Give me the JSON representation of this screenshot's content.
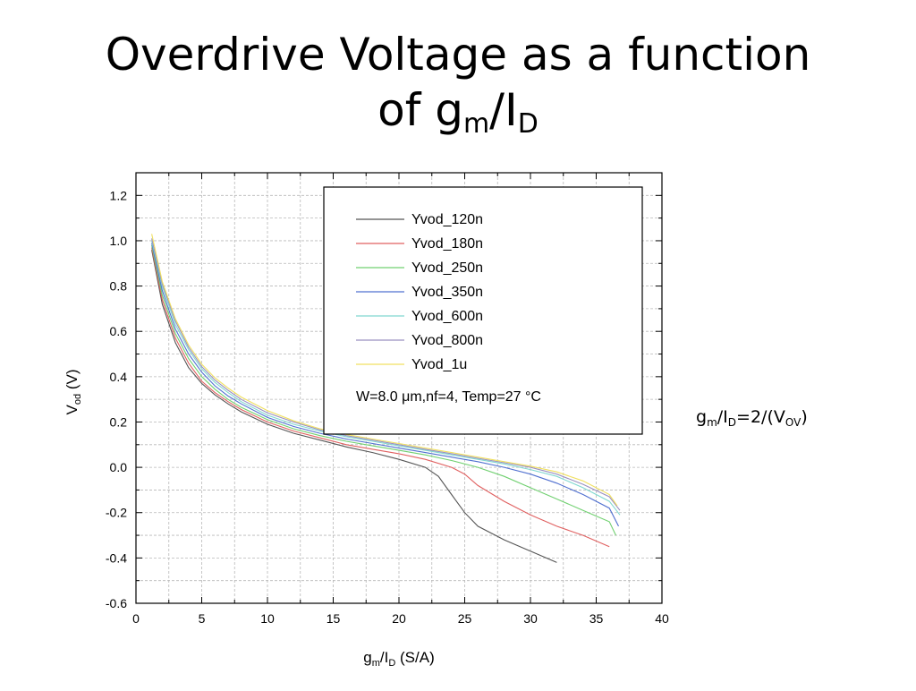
{
  "slide": {
    "title_line1": "Overdrive Voltage as a function",
    "title_line2_main": "of g",
    "title_line2_sub1": "m",
    "title_line2_mid": "/I",
    "title_line2_sub2": "D"
  },
  "side_note": {
    "g": "g",
    "m": "m",
    "slash_i": "/I",
    "d": "D",
    "eq": "=2/(V",
    "ov": "OV",
    "close": ")"
  },
  "chart_data": {
    "type": "line",
    "title": "",
    "xlabel": {
      "main": "g",
      "sub1": "m",
      "mid": "/I",
      "sub2": "D",
      "tail": " (S/A)"
    },
    "ylabel": {
      "main": "V",
      "sub": "od",
      "tail": " (V)"
    },
    "xlim": [
      0,
      40
    ],
    "ylim": [
      -0.6,
      1.3
    ],
    "xticks": [
      "0",
      "5",
      "10",
      "15",
      "20",
      "25",
      "30",
      "35",
      "40"
    ],
    "yticks": [
      "-0.6",
      "-0.4",
      "-0.2",
      "0.0",
      "0.2",
      "0.4",
      "0.6",
      "0.8",
      "1.0",
      "1.2"
    ],
    "grid": true,
    "legend_position": "top-right",
    "annotation": "W=8.0 μm,nf=4, Temp=27 °C",
    "series": [
      {
        "name": "Yvod_120n",
        "color": "#555555",
        "points": [
          [
            1.2,
            0.96
          ],
          [
            2,
            0.72
          ],
          [
            3,
            0.55
          ],
          [
            4,
            0.44
          ],
          [
            5,
            0.37
          ],
          [
            6,
            0.32
          ],
          [
            7,
            0.28
          ],
          [
            8,
            0.245
          ],
          [
            10,
            0.19
          ],
          [
            12,
            0.15
          ],
          [
            14,
            0.12
          ],
          [
            16,
            0.09
          ],
          [
            18,
            0.065
          ],
          [
            20,
            0.035
          ],
          [
            22,
            0.0
          ],
          [
            23,
            -0.04
          ],
          [
            24,
            -0.12
          ],
          [
            25,
            -0.2
          ],
          [
            26,
            -0.26
          ],
          [
            28,
            -0.32
          ],
          [
            30,
            -0.37
          ],
          [
            32,
            -0.42
          ]
        ]
      },
      {
        "name": "Yvod_180n",
        "color": "#e06060",
        "points": [
          [
            1.2,
            0.97
          ],
          [
            2,
            0.74
          ],
          [
            3,
            0.57
          ],
          [
            4,
            0.46
          ],
          [
            5,
            0.38
          ],
          [
            6,
            0.33
          ],
          [
            7,
            0.29
          ],
          [
            8,
            0.255
          ],
          [
            10,
            0.2
          ],
          [
            12,
            0.16
          ],
          [
            14,
            0.13
          ],
          [
            16,
            0.1
          ],
          [
            18,
            0.08
          ],
          [
            20,
            0.06
          ],
          [
            22,
            0.035
          ],
          [
            24,
            0.0
          ],
          [
            25,
            -0.03
          ],
          [
            26,
            -0.08
          ],
          [
            28,
            -0.15
          ],
          [
            30,
            -0.21
          ],
          [
            32,
            -0.26
          ],
          [
            34,
            -0.3
          ],
          [
            36,
            -0.35
          ]
        ]
      },
      {
        "name": "Yvod_250n",
        "color": "#70d070",
        "points": [
          [
            1.2,
            0.98
          ],
          [
            2,
            0.76
          ],
          [
            3,
            0.59
          ],
          [
            4,
            0.48
          ],
          [
            5,
            0.4
          ],
          [
            6,
            0.345
          ],
          [
            7,
            0.3
          ],
          [
            8,
            0.265
          ],
          [
            10,
            0.21
          ],
          [
            12,
            0.17
          ],
          [
            14,
            0.14
          ],
          [
            16,
            0.115
          ],
          [
            18,
            0.095
          ],
          [
            20,
            0.075
          ],
          [
            22,
            0.055
          ],
          [
            24,
            0.03
          ],
          [
            26,
            0.0
          ],
          [
            28,
            -0.04
          ],
          [
            30,
            -0.09
          ],
          [
            32,
            -0.14
          ],
          [
            34,
            -0.19
          ],
          [
            36,
            -0.24
          ],
          [
            36.5,
            -0.3
          ]
        ]
      },
      {
        "name": "Yvod_350n",
        "color": "#5070d0",
        "points": [
          [
            1.2,
            0.99
          ],
          [
            2,
            0.78
          ],
          [
            3,
            0.61
          ],
          [
            4,
            0.5
          ],
          [
            5,
            0.42
          ],
          [
            6,
            0.36
          ],
          [
            7,
            0.315
          ],
          [
            8,
            0.28
          ],
          [
            10,
            0.22
          ],
          [
            12,
            0.18
          ],
          [
            14,
            0.15
          ],
          [
            16,
            0.125
          ],
          [
            18,
            0.105
          ],
          [
            20,
            0.085
          ],
          [
            22,
            0.065
          ],
          [
            24,
            0.045
          ],
          [
            26,
            0.025
          ],
          [
            28,
            0.0
          ],
          [
            30,
            -0.03
          ],
          [
            32,
            -0.07
          ],
          [
            34,
            -0.12
          ],
          [
            36,
            -0.18
          ],
          [
            36.7,
            -0.26
          ]
        ]
      },
      {
        "name": "Yvod_600n",
        "color": "#80d8d0",
        "points": [
          [
            1.2,
            1.0
          ],
          [
            2,
            0.8
          ],
          [
            3,
            0.63
          ],
          [
            4,
            0.52
          ],
          [
            5,
            0.435
          ],
          [
            6,
            0.375
          ],
          [
            7,
            0.33
          ],
          [
            8,
            0.29
          ],
          [
            10,
            0.23
          ],
          [
            12,
            0.19
          ],
          [
            14,
            0.16
          ],
          [
            16,
            0.135
          ],
          [
            18,
            0.115
          ],
          [
            20,
            0.095
          ],
          [
            22,
            0.075
          ],
          [
            24,
            0.055
          ],
          [
            26,
            0.035
          ],
          [
            28,
            0.015
          ],
          [
            30,
            -0.01
          ],
          [
            32,
            -0.04
          ],
          [
            34,
            -0.09
          ],
          [
            36,
            -0.15
          ],
          [
            36.8,
            -0.21
          ]
        ]
      },
      {
        "name": "Yvod_800n",
        "color": "#9a90c0",
        "points": [
          [
            1.2,
            1.01
          ],
          [
            2,
            0.81
          ],
          [
            3,
            0.645
          ],
          [
            4,
            0.53
          ],
          [
            5,
            0.445
          ],
          [
            6,
            0.385
          ],
          [
            7,
            0.34
          ],
          [
            8,
            0.3
          ],
          [
            10,
            0.24
          ],
          [
            12,
            0.2
          ],
          [
            14,
            0.165
          ],
          [
            16,
            0.14
          ],
          [
            18,
            0.12
          ],
          [
            20,
            0.1
          ],
          [
            22,
            0.08
          ],
          [
            24,
            0.06
          ],
          [
            26,
            0.04
          ],
          [
            28,
            0.02
          ],
          [
            30,
            0.0
          ],
          [
            32,
            -0.03
          ],
          [
            34,
            -0.075
          ],
          [
            36,
            -0.13
          ],
          [
            36.8,
            -0.19
          ]
        ]
      },
      {
        "name": "Yvod_1u",
        "color": "#f0e060",
        "points": [
          [
            1.2,
            1.03
          ],
          [
            2,
            0.82
          ],
          [
            3,
            0.655
          ],
          [
            4,
            0.54
          ],
          [
            5,
            0.455
          ],
          [
            6,
            0.395
          ],
          [
            7,
            0.35
          ],
          [
            8,
            0.31
          ],
          [
            10,
            0.25
          ],
          [
            12,
            0.205
          ],
          [
            14,
            0.17
          ],
          [
            16,
            0.145
          ],
          [
            18,
            0.125
          ],
          [
            20,
            0.105
          ],
          [
            22,
            0.085
          ],
          [
            24,
            0.065
          ],
          [
            26,
            0.045
          ],
          [
            28,
            0.025
          ],
          [
            30,
            0.005
          ],
          [
            32,
            -0.02
          ],
          [
            34,
            -0.06
          ],
          [
            36,
            -0.12
          ],
          [
            36.6,
            -0.17
          ]
        ]
      }
    ]
  }
}
